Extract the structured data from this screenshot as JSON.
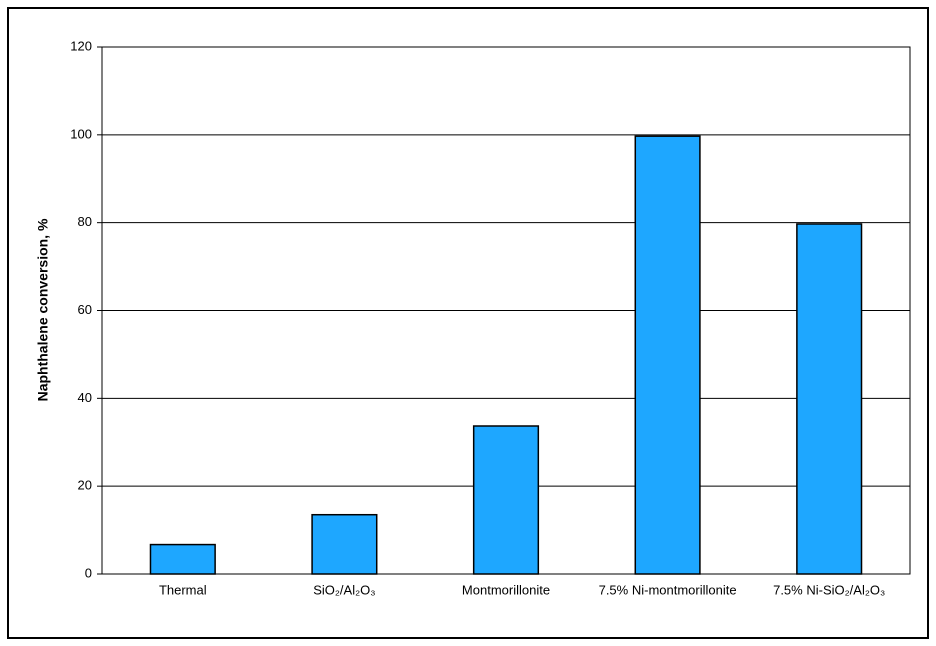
{
  "chart_data": {
    "type": "bar",
    "y_label": "Naphthalene conversion, %",
    "categories": [
      "Thermal",
      "SiO₂/Al₂O₃",
      "Montmorillonite",
      "7.5% Ni-montmorillonite",
      "7.5% Ni-SiO₂/Al₂O₃"
    ],
    "values": [
      6.7,
      13.5,
      33.7,
      99.7,
      79.7
    ],
    "color": "#1ea7ff",
    "ylim": [
      0,
      120
    ],
    "yticks": [
      0,
      20,
      40,
      60,
      80,
      100,
      120
    ],
    "grid": true
  }
}
